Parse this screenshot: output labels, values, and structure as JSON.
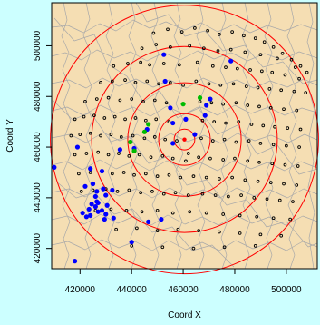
{
  "chart_data": {
    "type": "scatter",
    "title": "",
    "xlabel": "Coord X",
    "ylabel": "Coord Y",
    "xlim": [
      409000,
      512000
    ],
    "ylim": [
      412000,
      517000
    ],
    "x_ticks": [
      420000,
      440000,
      460000,
      480000,
      500000
    ],
    "x_tick_labels": [
      "420000",
      "440000",
      "460000",
      "480000",
      "500000"
    ],
    "y_ticks": [
      420000,
      440000,
      460000,
      480000,
      500000
    ],
    "y_tick_labels": [
      "420000",
      "440000",
      "460000",
      "480000",
      "500000"
    ],
    "grid": false,
    "legend": "none",
    "colors": {
      "background": "#ccffff",
      "map_fill": "#f5deb3",
      "boundaries": "#a9a9a9",
      "circles": "#ff0000",
      "centre": "#ff0000",
      "points_open": "#000000",
      "points_blue": "#0000ff",
      "points_green": "#00bb00"
    },
    "center": [
      460500,
      463000
    ],
    "circle_radii": [
      4000,
      10000,
      22000,
      36000,
      52000
    ],
    "series": [
      {
        "marker": "open-circle",
        "x": [
          448500,
          454000,
          459500,
          464500,
          469500,
          474000,
          479000,
          483500,
          488000,
          491500,
          495000,
          498500,
          502000,
          505500,
          508000,
          444000,
          449500,
          455000,
          462500,
          468000,
          473500,
          478500,
          484000,
          490000,
          496500,
          503500,
          433000,
          438500,
          443500,
          447000,
          452500,
          458500,
          465500,
          471500,
          476500,
          481000,
          486000,
          490500,
          494500,
          499500,
          505000,
          428000,
          432500,
          437500,
          441500,
          446000,
          450500,
          455000,
          460000,
          465000,
          470000,
          474500,
          479500,
          484500,
          489000,
          493500,
          498000,
          503000,
          507500,
          422000,
          426500,
          431000,
          435500,
          440000,
          444500,
          449000,
          453500,
          466500,
          471000,
          475500,
          480500,
          485000,
          489500,
          494000,
          499000,
          504000,
          418000,
          421500,
          425500,
          429500,
          433500,
          437500,
          441500,
          445500,
          449500,
          454500,
          467500,
          472000,
          476500,
          481500,
          486500,
          491000,
          495500,
          500500,
          505500,
          416500,
          420000,
          424000,
          428000,
          432000,
          436000,
          440500,
          445000,
          449000,
          453000,
          457500,
          462000,
          467000,
          471500,
          476000,
          480500,
          485500,
          490000,
          495000,
          500000,
          505000,
          418000,
          422500,
          427000,
          431000,
          435000,
          439000,
          443000,
          447500,
          452000,
          456000,
          461000,
          466000,
          470500,
          475500,
          480000,
          485000,
          489500,
          494500,
          499500,
          504500,
          419500,
          424000,
          428500,
          432500,
          437000,
          441000,
          445500,
          450000,
          454500,
          459000,
          464000,
          469000,
          474000,
          479000,
          484000,
          489000,
          494000,
          499000,
          504000,
          420500,
          425000,
          430000,
          434500,
          439000,
          443500,
          448000,
          452500,
          457000,
          462000,
          467500,
          472500,
          477500,
          482500,
          487500,
          492500,
          497500,
          502500,
          426000,
          432000,
          438000,
          444000,
          450000,
          456000,
          462500,
          469000,
          475500,
          482000,
          488500,
          495000,
          501500,
          434000,
          442000,
          450000,
          458000,
          466000,
          474000,
          482000,
          490000,
          498000,
          440000,
          452000,
          464000,
          476000,
          488000
        ],
        "y": [
          505000,
          506500,
          505500,
          507000,
          506000,
          504500,
          505500,
          504000,
          503000,
          501500,
          499500,
          497000,
          494500,
          492000,
          489500,
          499000,
          500500,
          499500,
          500000,
          499000,
          498000,
          498500,
          497500,
          496500,
          495000,
          491500,
          492000,
          493000,
          493500,
          492500,
          493000,
          492500,
          493500,
          492000,
          491500,
          491000,
          490500,
          490000,
          489500,
          488500,
          487000,
          485500,
          486000,
          486500,
          485500,
          486000,
          485000,
          485500,
          484500,
          486000,
          485000,
          484500,
          485000,
          484000,
          483500,
          483000,
          482500,
          482000,
          481500,
          478000,
          479000,
          479500,
          478500,
          479000,
          478000,
          478500,
          477500,
          478000,
          477500,
          477000,
          477500,
          476500,
          476000,
          475500,
          475000,
          474500,
          471000,
          472000,
          472500,
          471500,
          472000,
          471000,
          471500,
          470500,
          471000,
          470000,
          470500,
          470000,
          469500,
          470000,
          469000,
          468500,
          468000,
          467500,
          467000,
          464500,
          465000,
          465500,
          464500,
          465000,
          464000,
          464500,
          463500,
          464000,
          463000,
          462500,
          457500,
          463500,
          462500,
          463000,
          462000,
          462500,
          461500,
          461000,
          460500,
          460000,
          457000,
          457500,
          458000,
          457000,
          457500,
          456500,
          457000,
          456000,
          456500,
          455500,
          454500,
          456000,
          455500,
          455000,
          455500,
          454500,
          454000,
          453500,
          453000,
          452500,
          449500,
          450000,
          450500,
          449500,
          450000,
          449000,
          449500,
          448500,
          449000,
          448000,
          448500,
          448000,
          447500,
          448000,
          447000,
          446500,
          446000,
          445500,
          445000,
          442500,
          443000,
          443500,
          442500,
          443000,
          442000,
          442500,
          441500,
          442000,
          441000,
          441500,
          441000,
          440500,
          441000,
          440000,
          439500,
          439000,
          438500,
          435000,
          435500,
          435000,
          434500,
          435000,
          434000,
          434500,
          434000,
          433500,
          433000,
          432500,
          432000,
          431500,
          427500,
          428000,
          427000,
          427500,
          427000,
          426500,
          426000,
          425500,
          425000,
          421000,
          420500,
          420000,
          420500,
          421000
        ]
      },
      {
        "marker": "filled-circle-blue",
        "x": [
          452500,
          453000,
          455000,
          461000,
          469000,
          470500,
          464500,
          456000,
          446000,
          441000,
          428500,
          424000,
          410000,
          419000,
          435500,
          430000,
          426500,
          429000,
          422000,
          426000,
          424500,
          427000,
          430500,
          426000,
          423500,
          428500,
          421000,
          422500,
          424000,
          427000,
          430000,
          433000,
          429500,
          426500,
          425000,
          432500,
          446500,
          451500,
          440000,
          418000,
          468500,
          478500,
          456000
        ],
        "y": [
          496500,
          486000,
          475500,
          471000,
          476500,
          479000,
          465000,
          469500,
          467000,
          459500,
          450500,
          451500,
          452000,
          460000,
          459000,
          441000,
          442500,
          443500,
          444500,
          440500,
          437500,
          438000,
          437000,
          436500,
          435500,
          435000,
          434000,
          432500,
          433000,
          434500,
          433500,
          432000,
          431500,
          438500,
          445500,
          443000,
          430500,
          431500,
          422500,
          415000,
          472500,
          494000,
          461500
        ]
      },
      {
        "marker": "filled-circle-green",
        "x": [
          466500,
          460000,
          446500,
          445000,
          439500,
          441000
        ],
        "y": [
          479500,
          477000,
          469000,
          466000,
          462000,
          458500
        ]
      }
    ]
  }
}
